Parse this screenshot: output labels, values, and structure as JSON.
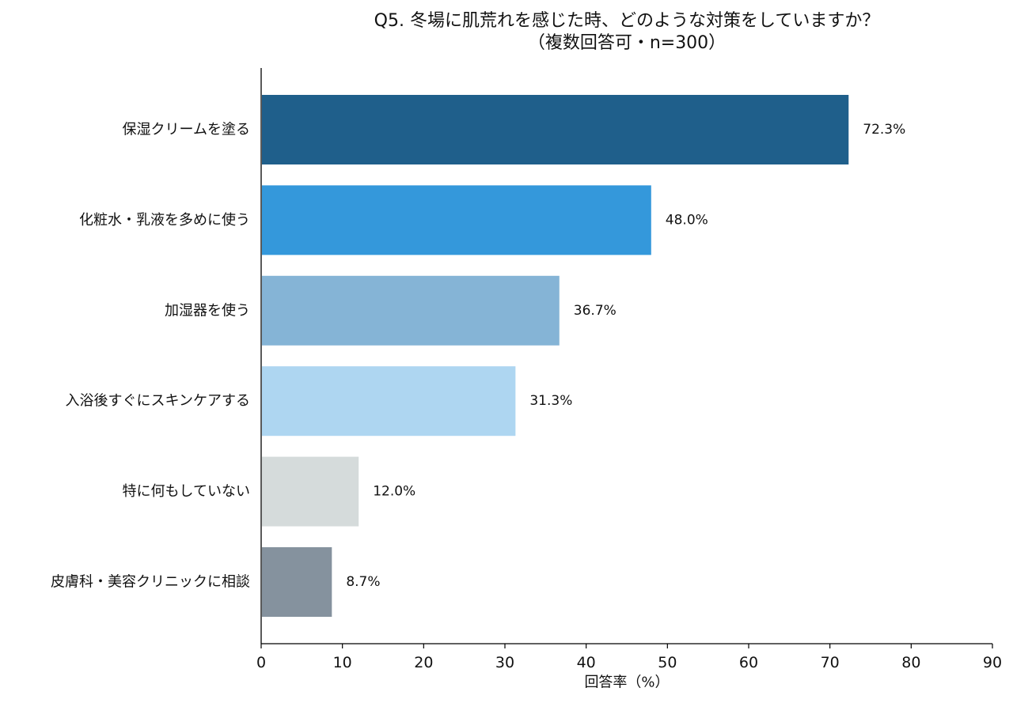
{
  "chart_data": {
    "type": "bar",
    "orientation": "horizontal",
    "title_line1": "Q5. 冬場に肌荒れを感じた時、どのような対策をしていますか？",
    "title_line2": "（複数回答可・n=300）",
    "xlabel": "回答率（%）",
    "ylabel": "",
    "xlim": [
      0,
      90
    ],
    "xticks": [
      0,
      10,
      20,
      30,
      40,
      50,
      60,
      70,
      80,
      90
    ],
    "grid": false,
    "categories": [
      "保湿クリームを塗る",
      "化粧水・乳液を多めに使う",
      "加湿器を使う",
      "入浴後すぐにスキンケアする",
      "特に何もしていない",
      "皮膚科・美容クリニックに相談"
    ],
    "values": [
      72.3,
      48.0,
      36.7,
      31.3,
      12.0,
      8.7
    ],
    "value_labels": [
      "72.3%",
      "48.0%",
      "36.7%",
      "31.3%",
      "12.0%",
      "8.7%"
    ],
    "colors": [
      "#1f5f8b",
      "#3498db",
      "#85b4d6",
      "#aed6f1",
      "#d5dbdb",
      "#85929e"
    ]
  }
}
